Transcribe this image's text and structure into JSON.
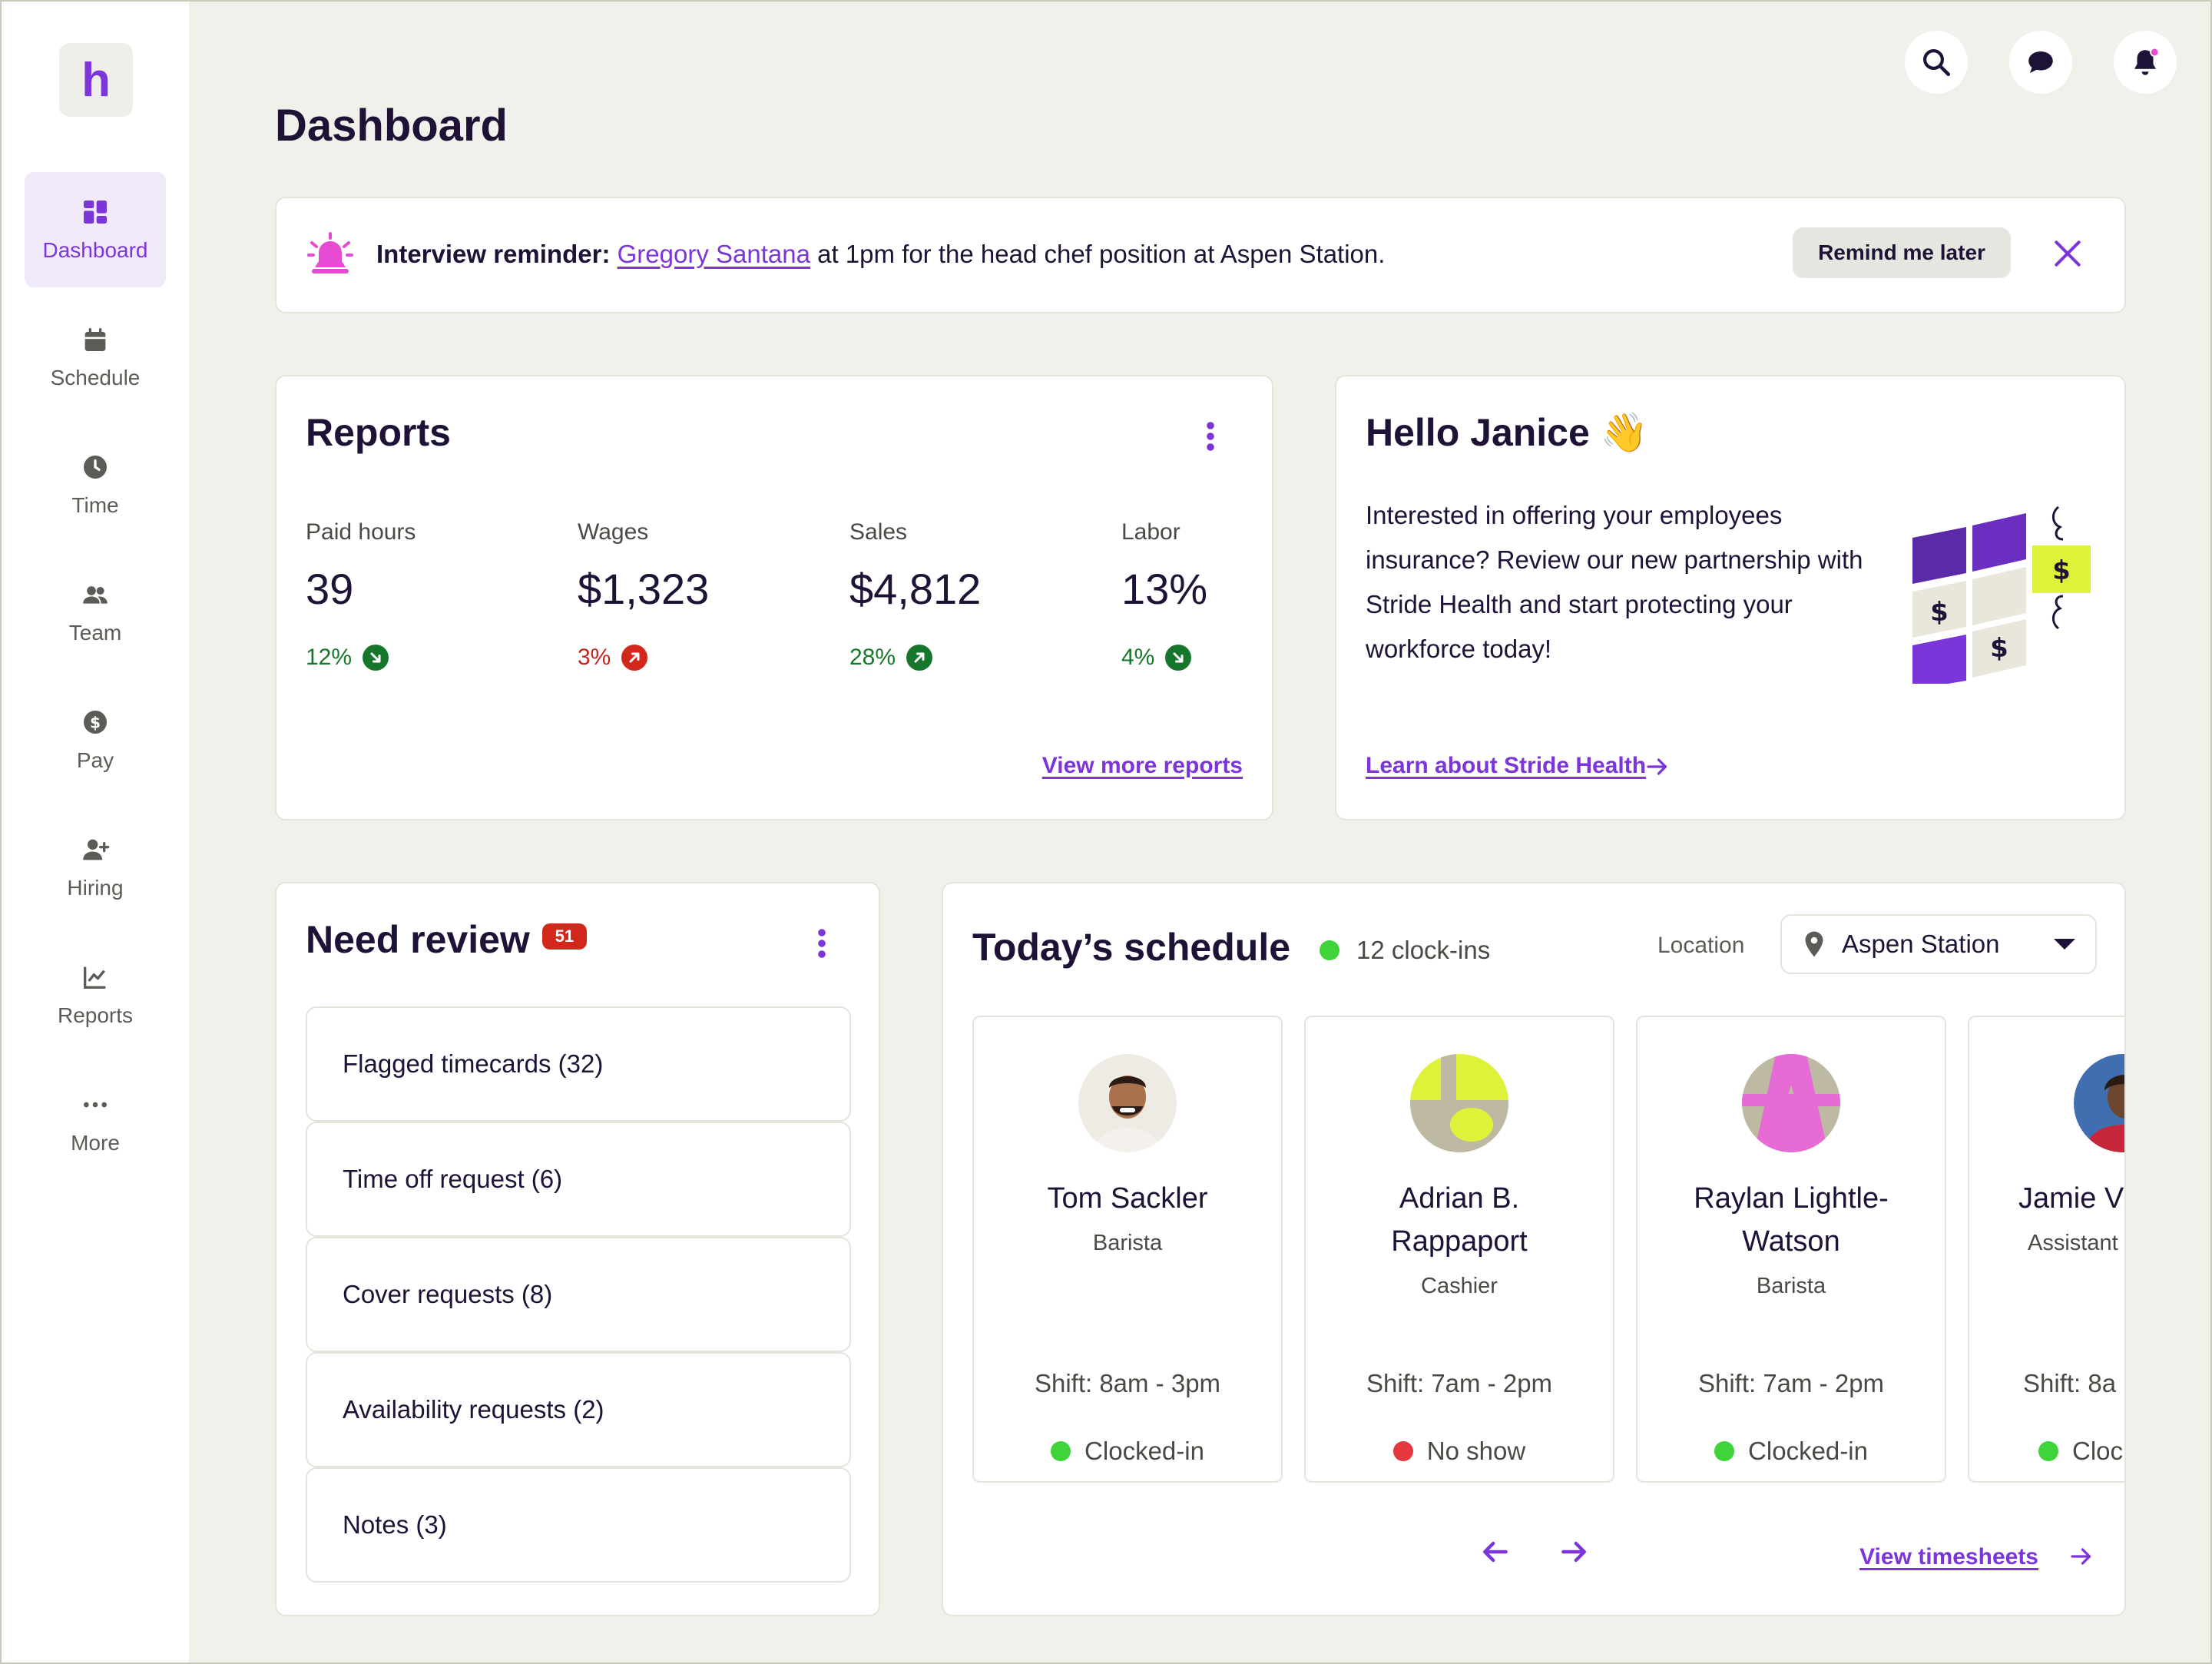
{
  "app": {
    "logo_letter": "h"
  },
  "sidebar": {
    "items": [
      {
        "label": "Dashboard",
        "icon": "dashboard-icon",
        "active": true
      },
      {
        "label": "Schedule",
        "icon": "calendar-icon"
      },
      {
        "label": "Time",
        "icon": "clock-icon"
      },
      {
        "label": "Team",
        "icon": "team-icon"
      },
      {
        "label": "Pay",
        "icon": "dollar-icon"
      },
      {
        "label": "Hiring",
        "icon": "add-user-icon"
      },
      {
        "label": "Reports",
        "icon": "chart-icon"
      },
      {
        "label": "More",
        "icon": "more-dots-icon"
      }
    ]
  },
  "header": {
    "title": "Dashboard",
    "icons": [
      "search-icon",
      "chat-icon",
      "notification-bell-icon"
    ]
  },
  "banner": {
    "label": "Interview reminder:",
    "person": "Gregory Santana",
    "text": "at 1pm for the head chef position at Aspen Station.",
    "remind_label": "Remind me later"
  },
  "reports": {
    "title": "Reports",
    "stats": [
      {
        "label": "Paid hours",
        "value": "39",
        "change": "12%",
        "direction": "down",
        "color": "#16772c"
      },
      {
        "label": "Wages",
        "value": "$1,323",
        "change": "3%",
        "direction": "up",
        "color": "#c0241c"
      },
      {
        "label": "Sales",
        "value": "$4,812",
        "change": "28%",
        "direction": "up",
        "color": "#16772c"
      },
      {
        "label": "Labor",
        "value": "13%",
        "change": "4%",
        "direction": "down",
        "color": "#16772c"
      }
    ],
    "link": "View more reports"
  },
  "hello": {
    "title": "Hello Janice",
    "emoji": "👋",
    "text": "Interested in offering your employees insurance?  Review our new partnership with Stride Health and start protecting your workforce today!",
    "link": "Learn about Stride Health"
  },
  "review": {
    "title": "Need review",
    "count": "51",
    "items": [
      "Flagged timecards (32)",
      "Time off request (6)",
      "Cover requests (8)",
      "Availability requests (2)",
      "Notes (3)"
    ]
  },
  "schedule": {
    "title": "Today’s schedule",
    "clockins": "12 clock-ins",
    "location_label": "Location",
    "location_value": "Aspen Station",
    "employees": [
      {
        "name_lines": [
          "Tom Sackler"
        ],
        "role": "Barista",
        "shift": "Shift: 8am - 3pm",
        "status": "Clocked-in",
        "status_color": "#3fd43a"
      },
      {
        "name_lines": [
          "Adrian B.",
          "Rappaport"
        ],
        "role": "Cashier",
        "shift": "Shift: 7am - 2pm",
        "status": "No show",
        "status_color": "#e5373e"
      },
      {
        "name_lines": [
          "Raylan Lightle-",
          "Watson"
        ],
        "role": "Barista",
        "shift": "Shift: 7am - 2pm",
        "status": "Clocked-in",
        "status_color": "#3fd43a"
      },
      {
        "name_lines": [
          "Jamie Vil"
        ],
        "role": "Assistant",
        "shift": "Shift: 8a",
        "status": "Cloc",
        "status_color": "#3fd43a"
      }
    ],
    "link": "View timesheets"
  },
  "colors": {
    "accent": "#7b35d9",
    "text": "#1e1236",
    "background": "#f1f1eb"
  }
}
